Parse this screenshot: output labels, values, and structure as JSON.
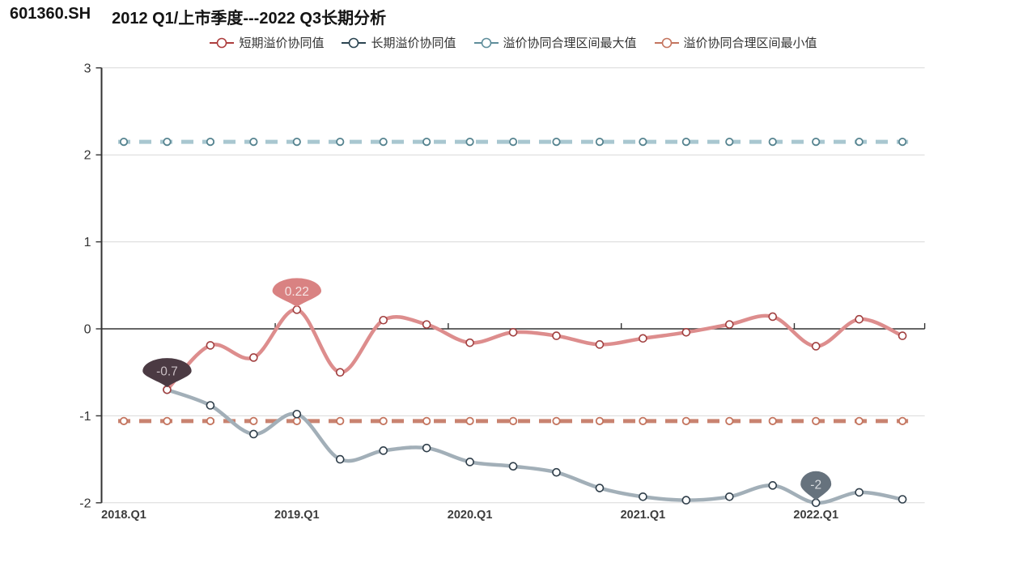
{
  "title": {
    "code": "601360.SH",
    "text": "2012 Q1/上市季度---2022 Q3长期分析"
  },
  "legend": [
    {
      "label": "短期溢价协同值",
      "color": "#ad3e3e"
    },
    {
      "label": "长期溢价协同值",
      "color": "#2b4451"
    },
    {
      "label": "溢价协同合理区间最大值",
      "color": "#5f8e9b"
    },
    {
      "label": "溢价协同合理区间最小值",
      "color": "#c4755f"
    }
  ],
  "chart_data": {
    "type": "line",
    "title": "601360.SH 2012 Q1/上市季度---2022 Q3长期分析",
    "categories": [
      "2018.Q1",
      "2018.Q2",
      "2018.Q3",
      "2018.Q4",
      "2019.Q1",
      "2019.Q2",
      "2019.Q3",
      "2019.Q4",
      "2020.Q1",
      "2020.Q2",
      "2020.Q3",
      "2020.Q4",
      "2021.Q1",
      "2021.Q2",
      "2021.Q3",
      "2021.Q4",
      "2022.Q1",
      "2022.Q2",
      "2022.Q3"
    ],
    "series": [
      {
        "name": "短期溢价协同值",
        "kind": "smooth",
        "color": "#dd8d8d",
        "marker_color": "#a13f3f",
        "values": [
          null,
          -0.7,
          -0.19,
          -0.33,
          0.22,
          -0.5,
          0.1,
          0.05,
          -0.16,
          -0.04,
          -0.08,
          -0.18,
          -0.11,
          -0.04,
          0.05,
          0.14,
          -0.2,
          0.11,
          -0.08
        ]
      },
      {
        "name": "长期溢价协同值",
        "kind": "smooth",
        "color": "#a2afb8",
        "marker_color": "#2f3e4a",
        "values": [
          null,
          -0.7,
          -0.88,
          -1.21,
          -0.98,
          -1.5,
          -1.4,
          -1.37,
          -1.53,
          -1.58,
          -1.65,
          -1.83,
          -1.93,
          -1.97,
          -1.93,
          -1.8,
          -2,
          -1.88,
          -1.96
        ]
      },
      {
        "name": "溢价协同合理区间最大值",
        "kind": "dashed-constant",
        "color": "#a9c7d0",
        "marker_color": "#55838f",
        "constant": 2.15
      },
      {
        "name": "溢价协同合理区间最小值",
        "kind": "dashed-constant",
        "color": "#c98370",
        "marker_color": "#c4755f",
        "constant": -1.06
      }
    ],
    "point_labels": [
      {
        "text": "0.22",
        "category": "2019.Q1",
        "value": 0.22,
        "fill": "#d98282",
        "text_color": "#f6e4e4"
      },
      {
        "text": "-0.7",
        "category": "2018.Q2",
        "value": -0.7,
        "fill": "#4b3a43",
        "text_color": "#cabfc4"
      },
      {
        "text": "-2",
        "category": "2022.Q1",
        "value": -2,
        "fill": "#66727d",
        "text_color": "#d9dde1"
      }
    ],
    "y_axis": {
      "min": -2,
      "max": 3,
      "ticks": [
        3,
        2,
        1,
        0,
        -1,
        -2
      ],
      "grid": true
    },
    "x_axis": {
      "labeled_categories": [
        "2018.Q1",
        "2019.Q1",
        "2020.Q1",
        "2021.Q1",
        "2022.Q1"
      ],
      "label_interval": 4
    },
    "legend_position": "top-center"
  }
}
